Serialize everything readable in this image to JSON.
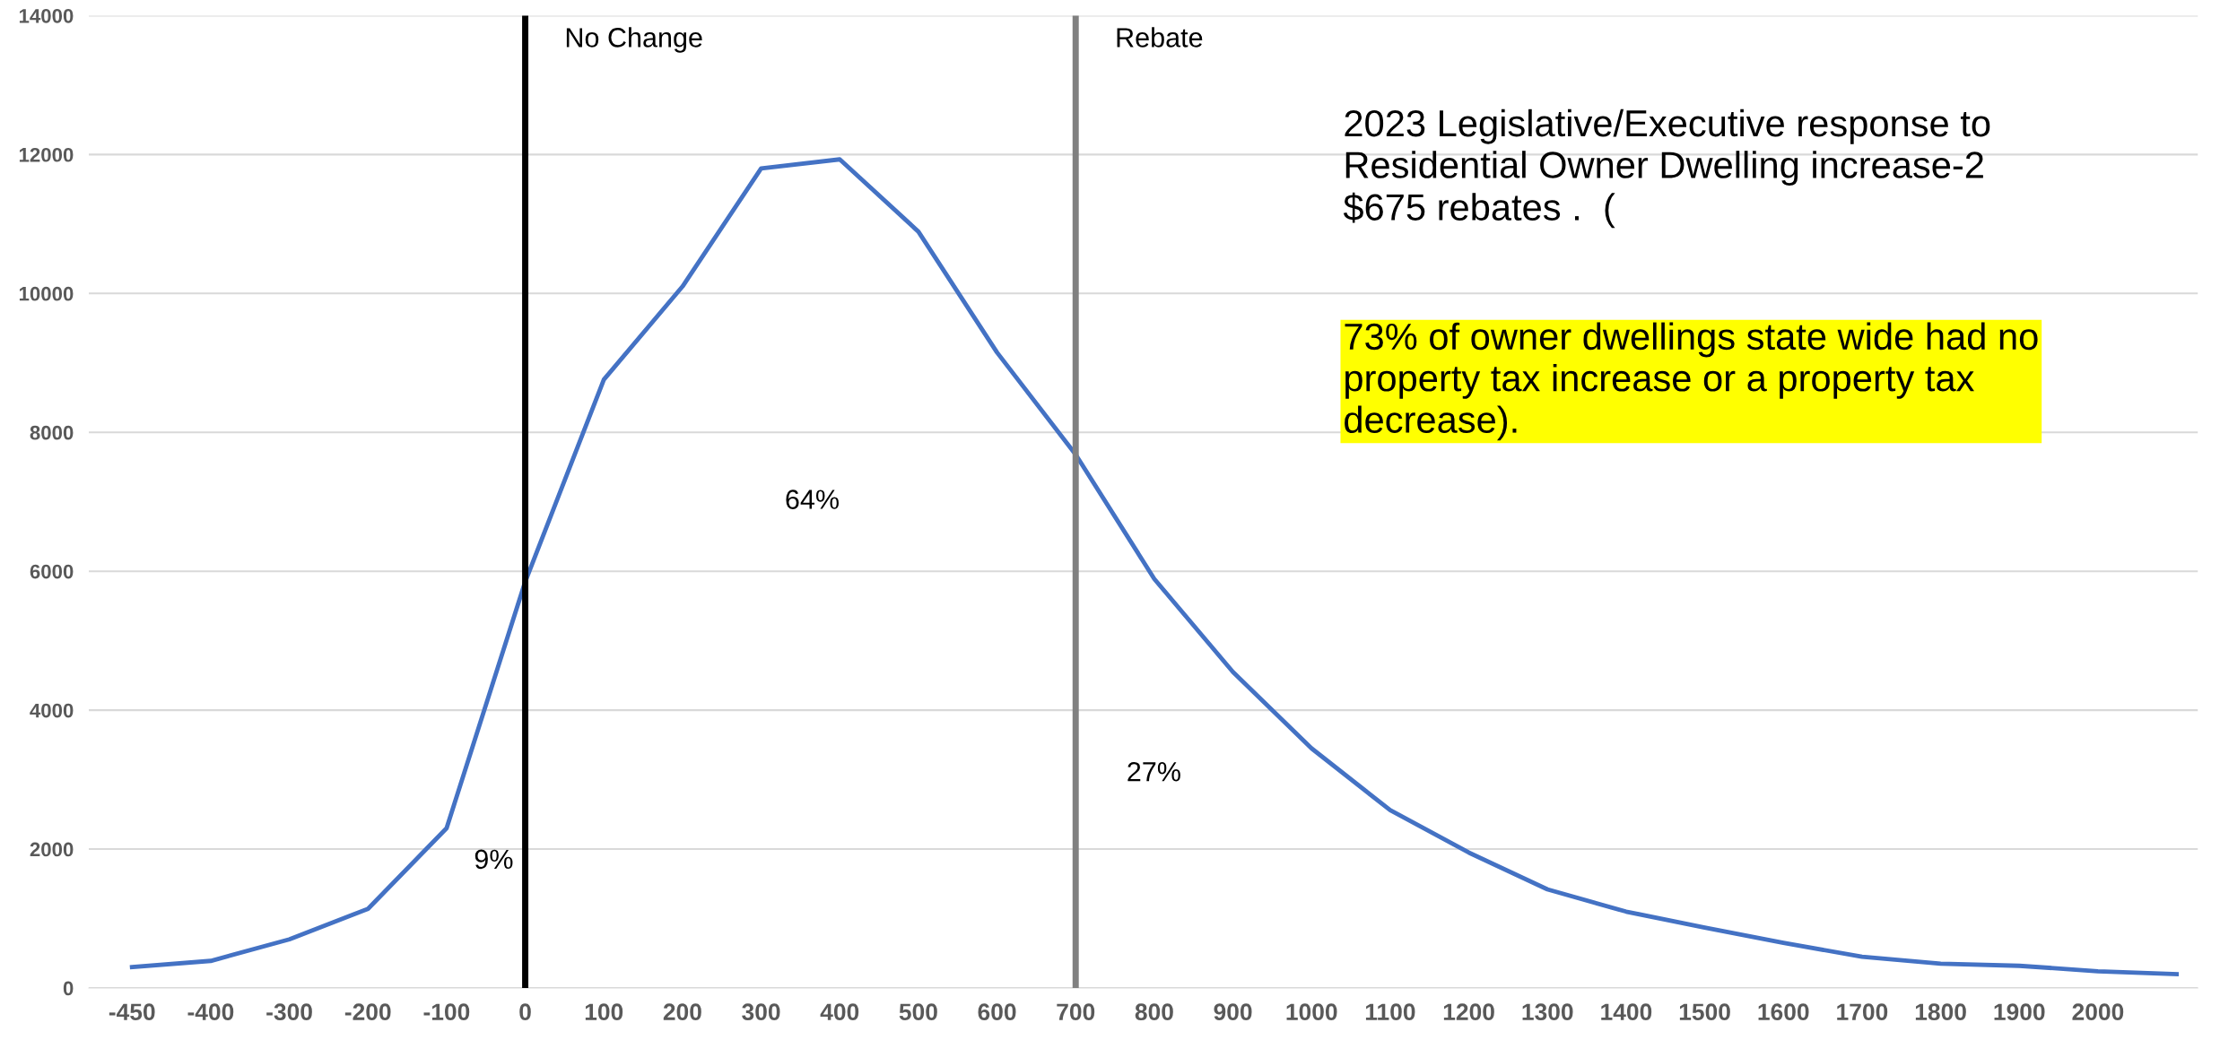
{
  "chart_data": {
    "type": "line",
    "categories": [
      "-450",
      "-400",
      "-300",
      "-200",
      "-100",
      "0",
      "100",
      "200",
      "300",
      "400",
      "500",
      "600",
      "700",
      "800",
      "900",
      "1000",
      "1100",
      "1200",
      "1300",
      "1400",
      "1500",
      "1600",
      "1700",
      "1800",
      "1900",
      "2000",
      null
    ],
    "series": [
      {
        "color": "#4472c4",
        "values": [
          300,
          390,
          700,
          1140,
          2300,
          5850,
          8760,
          10100,
          11800,
          11930,
          10890,
          9150,
          7680,
          5890,
          4550,
          3450,
          2560,
          1950,
          1420,
          1100,
          870,
          650,
          450,
          350,
          320,
          240,
          200
        ]
      }
    ],
    "ylim": [
      0,
      14000
    ],
    "yticks": [
      0,
      2000,
      4000,
      6000,
      8000,
      10000,
      12000,
      14000
    ],
    "grid": "y",
    "marker": "none",
    "line_style": "solid",
    "ref_lines": [
      {
        "axis": "x",
        "value": "0",
        "label": "No Change",
        "color": "#000000"
      },
      {
        "axis": "x",
        "value": "700",
        "label": "Rebate",
        "color": "#808080"
      }
    ],
    "annotations": [
      "9%",
      "64%",
      "27%",
      "2023 Legislative/Executive response to Residential Owner Dwelling increase-2 $675 rebates .  (",
      "73% of owner dwellings state wide had no property tax increase or a property tax decrease)."
    ]
  }
}
